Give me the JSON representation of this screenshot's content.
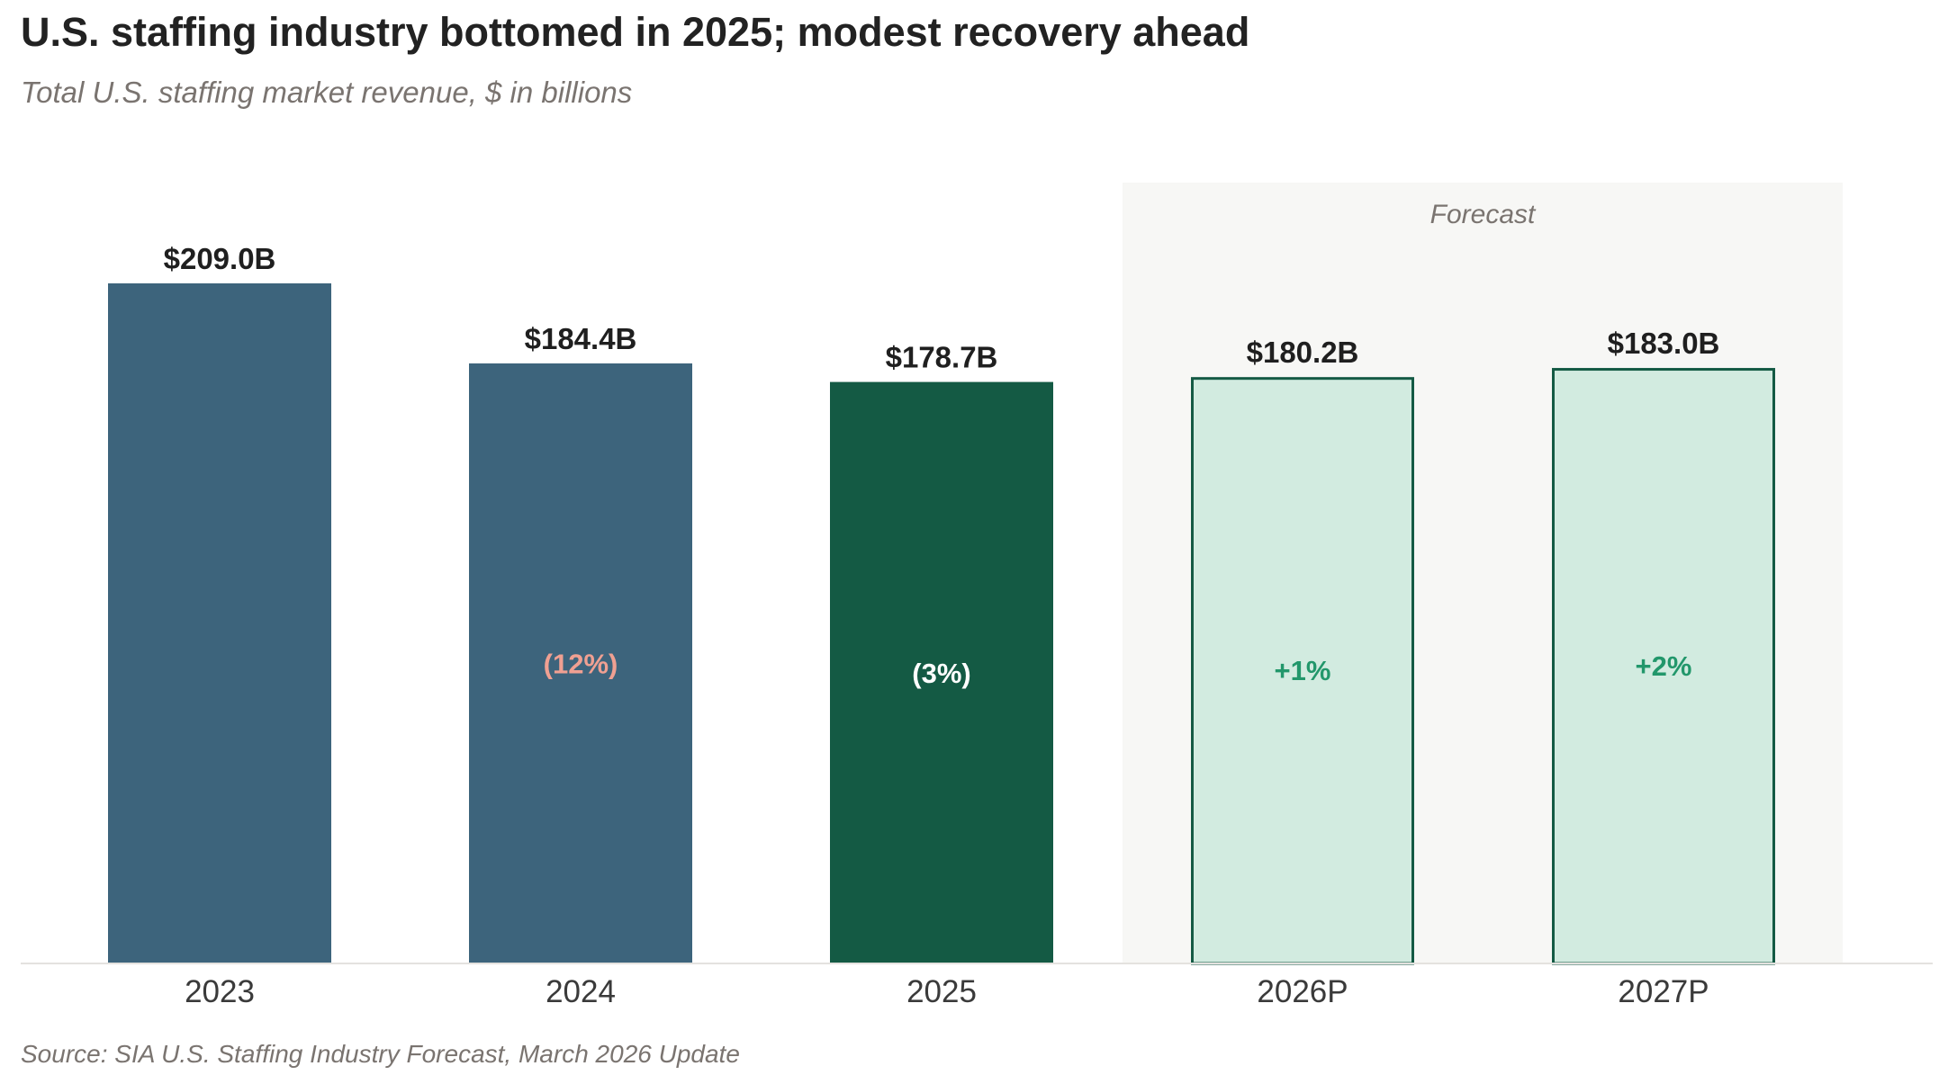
{
  "chart_data": {
    "type": "bar",
    "title": "U.S. staffing industry bottomed in 2025; modest recovery ahead",
    "subtitle": "Total U.S. staffing market revenue, $ in billions",
    "source": "Source: SIA U.S. Staffing Industry Forecast, March 2026 Update",
    "categories": [
      "2023",
      "2024",
      "2025",
      "2026P",
      "2027P"
    ],
    "values": [
      209.0,
      184.4,
      178.7,
      180.2,
      183.0
    ],
    "value_labels": [
      "$209.0B",
      "$184.4B",
      "$178.7B",
      "$180.2B",
      "$183.0B"
    ],
    "change_labels": [
      "",
      "(12%)",
      "(3%)",
      "+1%",
      "+2%"
    ],
    "forecast_region_label": "Forecast",
    "forecast_categories": [
      "2026P",
      "2027P"
    ],
    "xlabel": "",
    "ylabel": "",
    "ylim": [
      0,
      209.0
    ],
    "grid": false,
    "colors": {
      "historical": "#3d647c",
      "trough": "#145a44",
      "forecast_fill": "#d2ebe0",
      "forecast_stroke": "#145a44",
      "forecast_band": "#f7f7f5",
      "change_negative": "#f0a092",
      "change_trough": "#ffffff",
      "change_positive": "#22976b"
    }
  }
}
